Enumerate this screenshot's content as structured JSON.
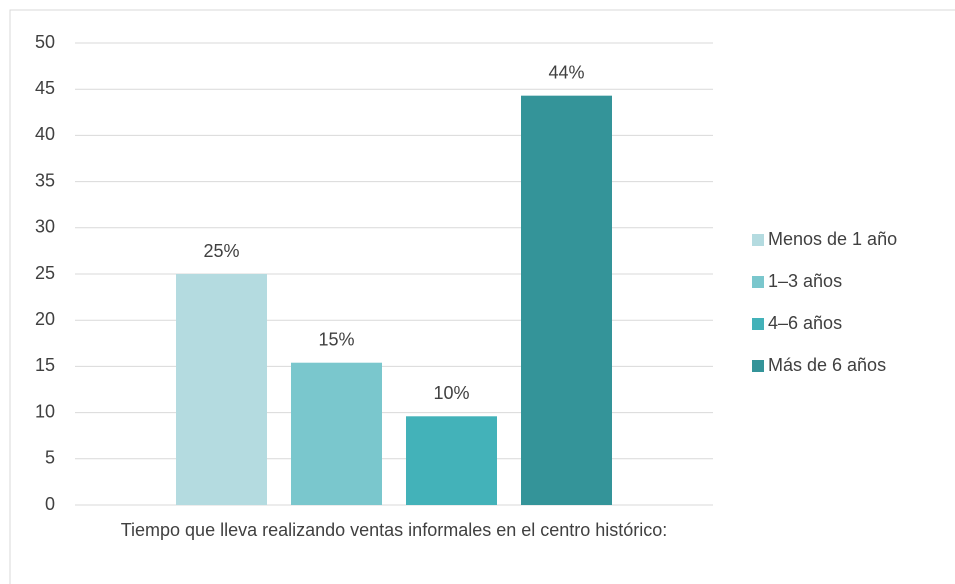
{
  "chart_data": {
    "type": "bar",
    "categories": [
      "Tiempo que lleva realizando ventas informales en el centro histórico:"
    ],
    "series": [
      {
        "name": "Menos de 1 año",
        "color": "#b4dbe0",
        "values": [
          25
        ],
        "value_labels": [
          "25%"
        ]
      },
      {
        "name": "1–3 años",
        "color": "#7ac7cd",
        "values": [
          15.4
        ],
        "value_labels": [
          "15%"
        ]
      },
      {
        "name": "4–6 años",
        "color": "#43b2b9",
        "values": [
          9.6
        ],
        "value_labels": [
          "10%"
        ]
      },
      {
        "name": "Más de 6 años",
        "color": "#349499",
        "values": [
          44.3
        ],
        "value_labels": [
          "44%"
        ]
      }
    ],
    "ylim": [
      0,
      50
    ],
    "yticks": [
      0,
      5,
      10,
      15,
      20,
      25,
      30,
      35,
      40,
      45,
      50
    ],
    "grid": true,
    "legend": "right"
  }
}
